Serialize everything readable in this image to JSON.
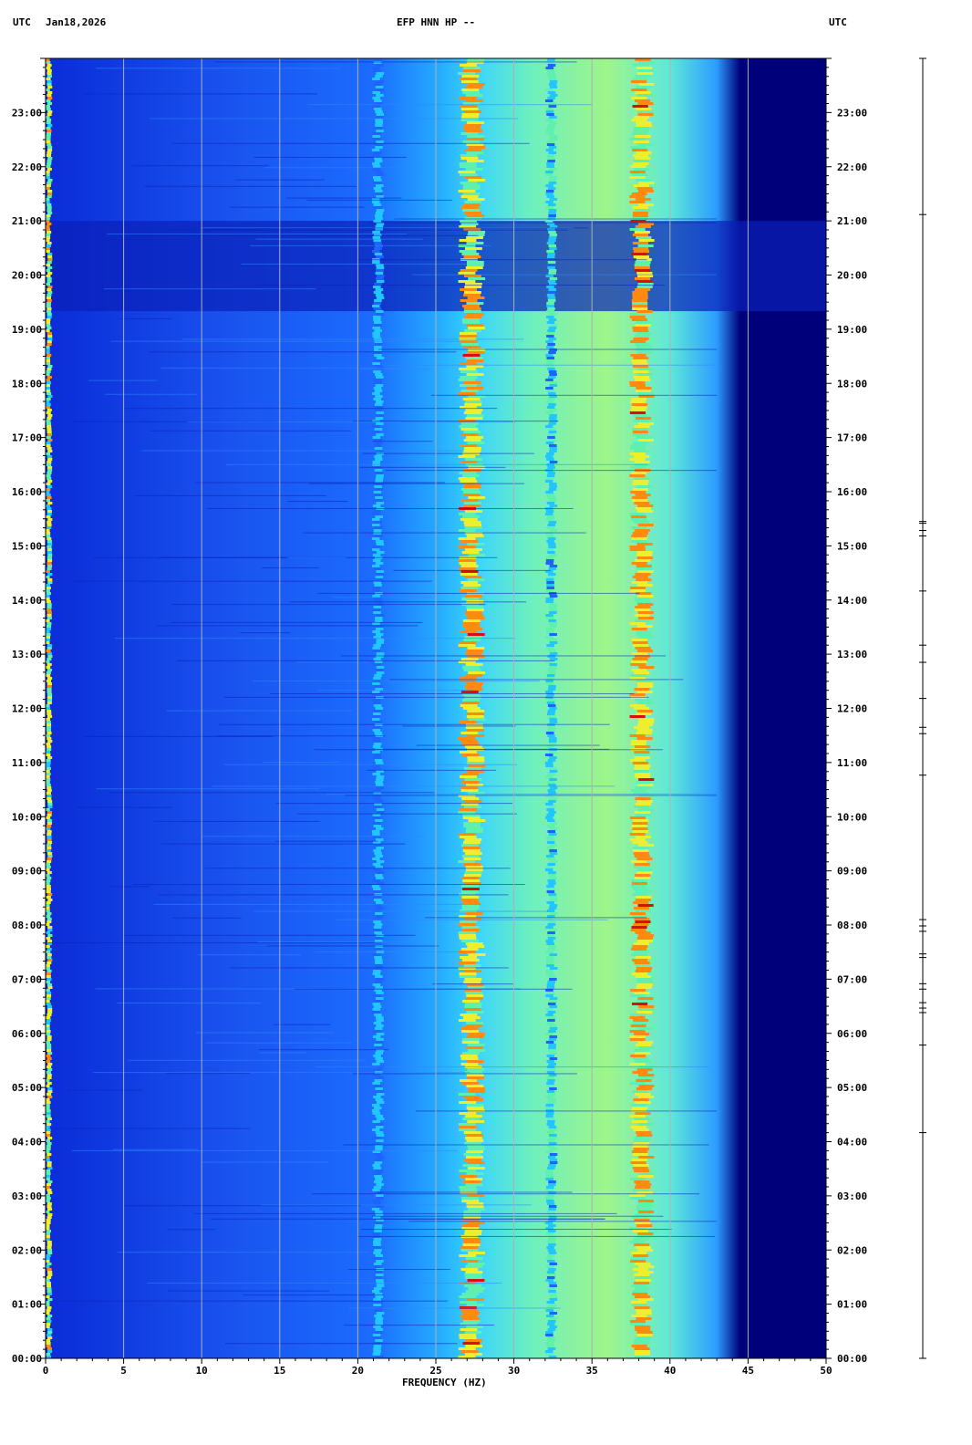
{
  "header": {
    "utc_left": "UTC",
    "date": "Jan18,2026",
    "title": "EFP HNN HP --",
    "utc_right": "UTC"
  },
  "colors": {
    "background": "#ffffff",
    "axis": "#000000",
    "gridline": "#b0b0b0",
    "colormap": [
      "#00007a",
      "#0022d0",
      "#1f63ff",
      "#22c6ff",
      "#5ff0b0",
      "#eeee30",
      "#ff8a10",
      "#d80f0f"
    ]
  },
  "chart_data": {
    "type": "heatmap",
    "title": "EFP HNN HP --",
    "xlabel": "FREQUENCY (HZ)",
    "ylabel": "UTC",
    "xlim": [
      0,
      50
    ],
    "ylim": [
      "00:00",
      "24:00"
    ],
    "x_ticks": [
      0,
      5,
      10,
      15,
      20,
      25,
      30,
      35,
      40,
      45,
      50
    ],
    "y_ticks": [
      "00:00",
      "01:00",
      "02:00",
      "03:00",
      "04:00",
      "05:00",
      "06:00",
      "07:00",
      "08:00",
      "09:00",
      "10:00",
      "11:00",
      "12:00",
      "13:00",
      "14:00",
      "15:00",
      "16:00",
      "17:00",
      "18:00",
      "19:00",
      "20:00",
      "21:00",
      "22:00",
      "23:00"
    ],
    "grid": true,
    "frequency_bands_hz": [
      {
        "center": 0.2,
        "width": 0.3,
        "intensity": 0.75
      },
      {
        "center": 21.3,
        "width": 0.5,
        "intensity": 0.45
      },
      {
        "center": 27.3,
        "width": 1.1,
        "intensity": 0.85
      },
      {
        "center": 32.4,
        "width": 0.5,
        "intensity": 0.55
      },
      {
        "center": 38.2,
        "width": 1.0,
        "intensity": 0.85
      }
    ],
    "quiet_intervals_utc": [
      [
        "19:20",
        "21:00"
      ]
    ],
    "event_ticks_utc": [
      "00:00",
      "04:10",
      "05:47",
      "06:23",
      "06:28",
      "06:34",
      "06:49",
      "06:55",
      "07:24",
      "07:28",
      "07:53",
      "07:59",
      "08:06",
      "10:46",
      "11:32",
      "11:39",
      "12:11",
      "12:51",
      "13:10",
      "14:10",
      "15:11",
      "15:17",
      "15:25",
      "15:27",
      "21:07",
      "24:00"
    ]
  }
}
